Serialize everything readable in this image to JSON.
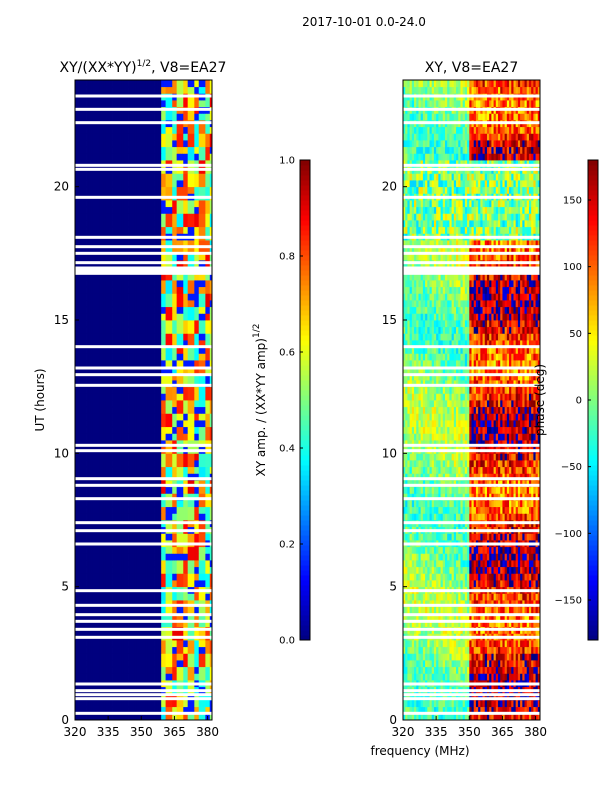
{
  "suptitle": "2017-10-01 0.0-24.0",
  "colors": {
    "background": "#ffffff",
    "jet": [
      "#00007f",
      "#0000ff",
      "#007fff",
      "#00ffff",
      "#7fff7f",
      "#ffff00",
      "#ff7f00",
      "#ff0000",
      "#7f0000"
    ]
  },
  "chart_data": [
    {
      "type": "heatmap",
      "title_main": "XY/(XX*YY)",
      "title_sup": "1/2",
      "title_suffix": ", V8=EA27",
      "xlabel": "",
      "ylabel": "UT (hours)",
      "xlim": [
        320,
        382
      ],
      "ylim": [
        0,
        24
      ],
      "xticks": [
        "320",
        "335",
        "350",
        "365",
        "380"
      ],
      "xtick_values": [
        320,
        335,
        350,
        365,
        380
      ],
      "yticks": [
        "0",
        "5",
        "10",
        "15",
        "20"
      ],
      "ytick_values": [
        0,
        5,
        10,
        15,
        20
      ],
      "colorbar": {
        "label_main": "XY amp. / (XX*YY amp)",
        "label_sup": "1/2",
        "range": [
          0.0,
          1.0
        ],
        "ticks": [
          "0.0",
          "0.2",
          "0.4",
          "0.6",
          "0.8",
          "1.0"
        ],
        "tick_values": [
          0.0,
          0.2,
          0.4,
          0.6,
          0.8,
          1.0
        ]
      },
      "description": "Low amplitude (~0.0) below ~359 MHz; banded high values 0.3-0.9 between ~360 and 380 MHz with flagged (white) time gaps."
    },
    {
      "type": "heatmap",
      "title": "XY, V8=EA27",
      "xlabel": "frequency (MHz)",
      "ylabel": "",
      "xlim": [
        320,
        382
      ],
      "ylim": [
        0,
        24
      ],
      "xticks": [
        "320",
        "335",
        "350",
        "365",
        "380"
      ],
      "xtick_values": [
        320,
        335,
        350,
        365,
        380
      ],
      "yticks": [
        "0",
        "5",
        "10",
        "15",
        "20"
      ],
      "ytick_values": [
        0,
        5,
        10,
        15,
        20
      ],
      "colorbar": {
        "label": "phase (deg)",
        "range": [
          -180,
          180
        ],
        "ticks": [
          "−150",
          "−100",
          "−50",
          "0",
          "50",
          "100",
          "150"
        ],
        "tick_values": [
          -150,
          -100,
          -50,
          0,
          50,
          100,
          150
        ]
      },
      "description": "Phase varies with frequency; mostly -50 to 50 deg below ~350 MHz, red/dark-red (100-180 deg) above ~352 MHz in many time ranges."
    }
  ],
  "flagged_hours": [
    0.25,
    0.8,
    0.95,
    1.1,
    1.35,
    3.1,
    3.4,
    3.7,
    3.95,
    4.3,
    4.85,
    6.6,
    7.1,
    7.4,
    8.3,
    8.8,
    9.05,
    10.1,
    10.3,
    12.55,
    12.95,
    13.2,
    14.0,
    16.75,
    16.85,
    16.95,
    17.15,
    17.5,
    17.75,
    18.1,
    19.6,
    20.65,
    20.8,
    22.4,
    22.9,
    23.4
  ]
}
